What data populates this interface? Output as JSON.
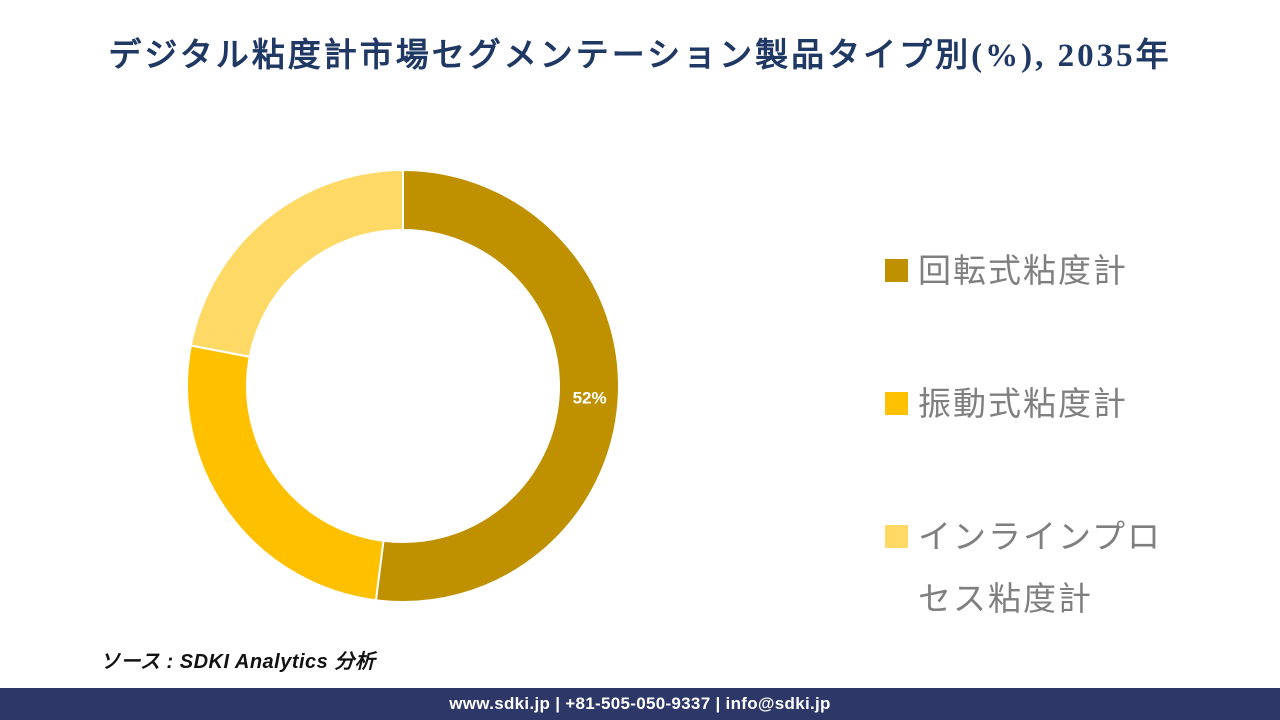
{
  "title": "デジタル粘度計市場セグメンテーション製品タイプ別(%), 2035年",
  "chart_data": {
    "type": "pie",
    "subtype": "donut",
    "title": "デジタル粘度計市場セグメンテーション製品タイプ別(%), 2035年",
    "start_angle_deg": 0,
    "direction": "clockwise",
    "inner_radius_ratio": 0.72,
    "legend_position": "right",
    "segments": [
      {
        "name": "回転式粘度計",
        "value": 52,
        "color": "#BF9000",
        "data_label": "52%"
      },
      {
        "name": "振動式粘度計",
        "value": 26,
        "color": "#FFC000",
        "data_label": ""
      },
      {
        "name": "インラインプロセス粘度計",
        "value": 22,
        "color": "#FFD966",
        "data_label": ""
      }
    ]
  },
  "legend": {
    "items": [
      {
        "label": "回転式粘度計",
        "color": "#BF9000"
      },
      {
        "label": "振動式粘度計",
        "color": "#FFC000"
      },
      {
        "label": "インラインプロセス粘度計",
        "color": "#FFD966"
      }
    ]
  },
  "source_note": "ソース : SDKI Analytics 分析",
  "footer": {
    "text": "www.sdki.jp | +81-505-050-9337 | info@sdki.jp",
    "background_color": "#2D3768"
  },
  "colors": {
    "title_text": "#1F3864",
    "legend_text": "#7F7F7F",
    "data_label_text": "#FFFFFF",
    "segment_separator": "#FFFFFF"
  }
}
